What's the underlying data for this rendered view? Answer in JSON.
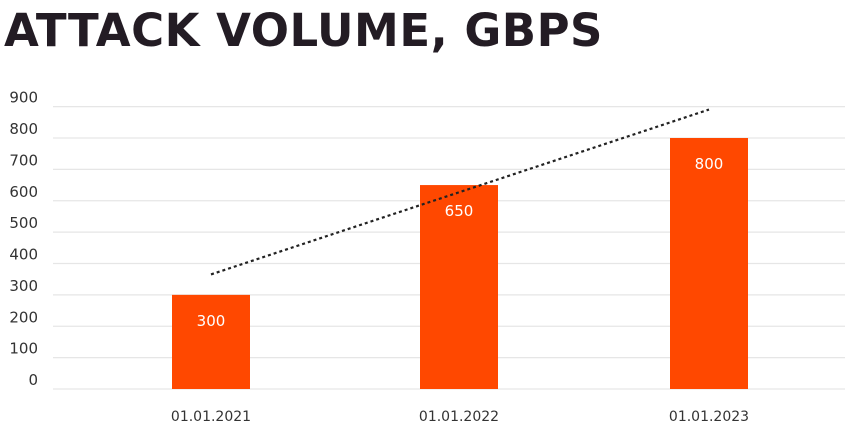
{
  "chart_data": {
    "type": "bar",
    "title": "ATTACK VOLUME, GBPS",
    "categories": [
      "01.01.2021",
      "01.01.2022",
      "01.01.2023"
    ],
    "values": [
      300,
      650,
      800
    ],
    "data_labels": [
      "300",
      "650",
      "800"
    ],
    "xlabel": "",
    "ylabel": "",
    "ylim": [
      0,
      900
    ],
    "yticks": [
      "0",
      "100",
      "200",
      "300",
      "400",
      "500",
      "600",
      "700",
      "800",
      "900"
    ],
    "grid": true,
    "trendline": "linear, dotted",
    "legend": "none",
    "colors": {
      "bar": "#ff4800",
      "grid": "#e6e6e6",
      "trendline": "#222222",
      "title": "#231c24",
      "text": "#333333",
      "data_label": "#ffffff"
    }
  }
}
